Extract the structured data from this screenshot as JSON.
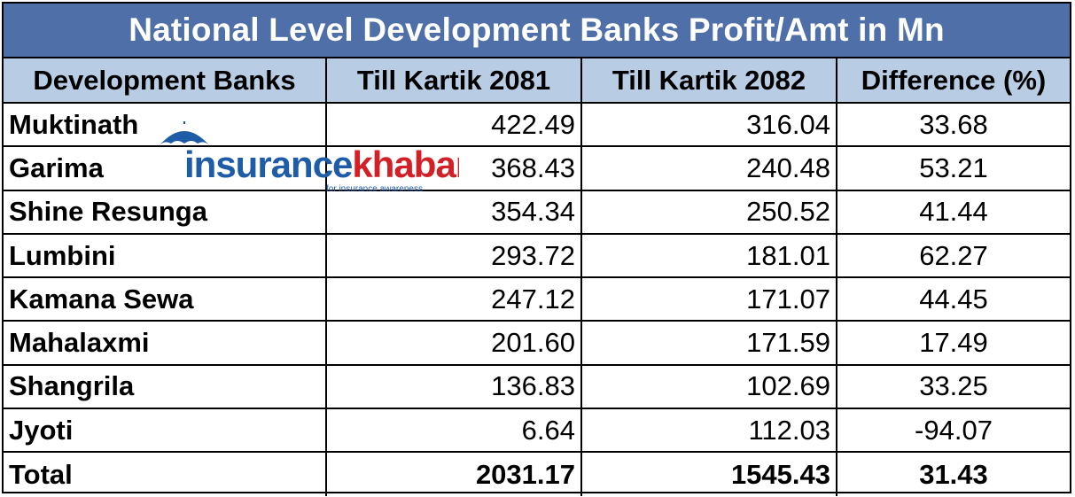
{
  "title": "National Level Development Banks Profit/Amt in Mn",
  "columns": [
    "Development Banks",
    "Till Kartik 2081",
    "Till Kartik 2082",
    "Difference (%)"
  ],
  "rows": [
    {
      "name": "Muktinath",
      "k2081": "422.49",
      "k2082": "316.04",
      "diff": "33.68"
    },
    {
      "name": "Garima",
      "k2081": "368.43",
      "k2082": "240.48",
      "diff": "53.21"
    },
    {
      "name": "Shine Resunga",
      "k2081": "354.34",
      "k2082": "250.52",
      "diff": "41.44"
    },
    {
      "name": "Lumbini",
      "k2081": "293.72",
      "k2082": "181.01",
      "diff": "62.27"
    },
    {
      "name": "Kamana Sewa",
      "k2081": "247.12",
      "k2082": "171.07",
      "diff": "44.45"
    },
    {
      "name": "Mahalaxmi",
      "k2081": "201.60",
      "k2082": "171.59",
      "diff": "17.49"
    },
    {
      "name": "Shangrila",
      "k2081": "136.83",
      "k2082": "102.69",
      "diff": "33.25"
    },
    {
      "name": "Jyoti",
      "k2081": "6.64",
      "k2082": "112.03",
      "diff": "-94.07"
    }
  ],
  "total": {
    "name": "Total",
    "k2081": "2031.17",
    "k2082": "1545.43",
    "diff": "31.43"
  },
  "watermark": {
    "brand_1": "insurance",
    "brand_2": "khabar",
    "tagline": "for insurance awareness"
  },
  "colors": {
    "title_bg": "#4f6fa8",
    "header_bg": "#b8cce4",
    "logo_blue": "#1f5ca8",
    "logo_red": "#d32027"
  }
}
